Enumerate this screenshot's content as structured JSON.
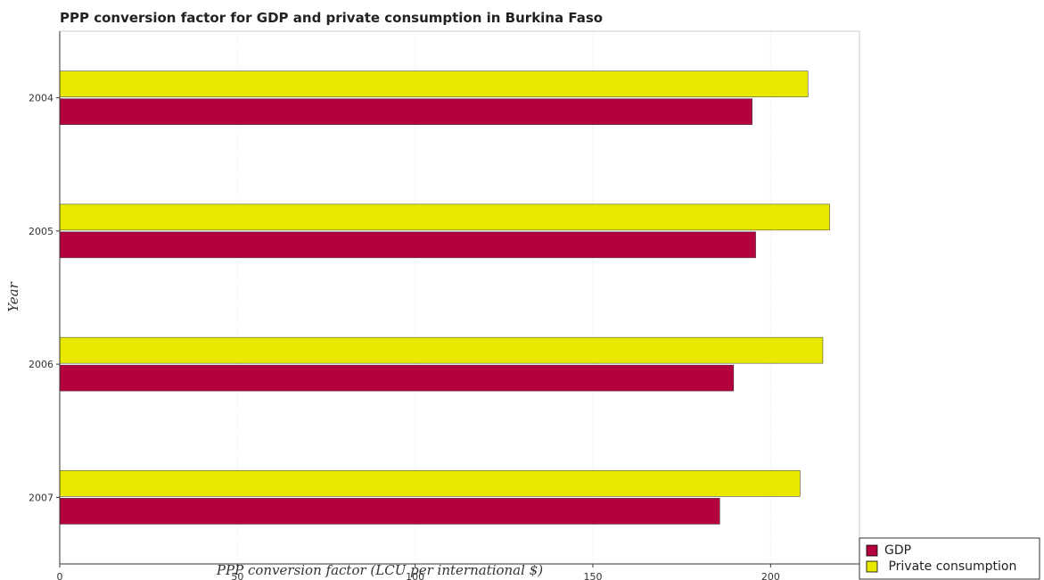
{
  "chart_data": {
    "type": "bar",
    "orientation": "horizontal",
    "title": "PPP conversion factor for GDP and private consumption in Burkina Faso",
    "xlabel": "PPP conversion factor (LCU per international $)",
    "ylabel": "Year",
    "categories": [
      "2004",
      "2005",
      "2006",
      "2007"
    ],
    "xlim": [
      0,
      225
    ],
    "xticks": [
      0,
      50,
      100,
      150,
      200
    ],
    "grid": true,
    "legend_position": "bottom-right",
    "series": [
      {
        "name": "GDP",
        "color": "#b5003e",
        "values": [
          194.8,
          195.8,
          189.6,
          185.7
        ]
      },
      {
        "name": " Private consumption",
        "color": "#e8e800",
        "values": [
          210.5,
          216.6,
          214.7,
          208.3
        ]
      }
    ]
  }
}
